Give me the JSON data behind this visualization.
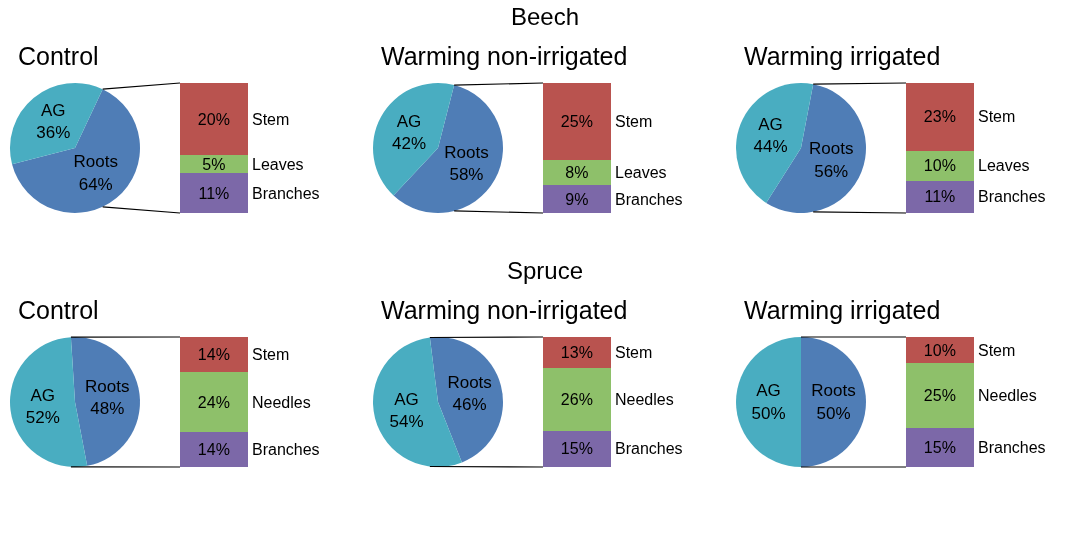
{
  "chart_data": [
    {
      "type": "pie",
      "title": "Control",
      "annotations": [
        "Beech"
      ],
      "categories": [
        "Roots",
        "AG"
      ],
      "values": [
        64,
        36
      ],
      "value_labels": [
        "64%",
        "36%"
      ],
      "colors": [
        "#4f7db6",
        "#49adc1"
      ],
      "legend": false
    },
    {
      "type": "bar",
      "stacked": true,
      "categories": [
        null
      ],
      "tick_labels": false,
      "legend": false,
      "series": [
        {
          "name": "Branches",
          "color": "#7c68a8",
          "values": [
            11
          ],
          "value_labels": [
            "11%"
          ]
        },
        {
          "name": "Leaves",
          "color": "#8ec06a",
          "values": [
            5
          ],
          "value_labels": [
            "5%"
          ]
        },
        {
          "name": "Stem",
          "color": "#b9534f",
          "values": [
            20
          ],
          "value_labels": [
            "20%"
          ]
        }
      ]
    },
    {
      "type": "pie",
      "title": "Warming non-irrigated",
      "categories": [
        "Roots",
        "AG"
      ],
      "values": [
        58,
        42
      ],
      "value_labels": [
        "58%",
        "42%"
      ],
      "colors": [
        "#4f7db6",
        "#49adc1"
      ],
      "legend": false
    },
    {
      "type": "bar",
      "stacked": true,
      "categories": [
        null
      ],
      "tick_labels": false,
      "legend": false,
      "series": [
        {
          "name": "Branches",
          "color": "#7c68a8",
          "values": [
            9
          ],
          "value_labels": [
            "9%"
          ]
        },
        {
          "name": "Leaves",
          "color": "#8ec06a",
          "values": [
            8
          ],
          "value_labels": [
            "8%"
          ]
        },
        {
          "name": "Stem",
          "color": "#b9534f",
          "values": [
            25
          ],
          "value_labels": [
            "25%"
          ]
        }
      ]
    },
    {
      "type": "pie",
      "title": "Warming irrigated",
      "categories": [
        "Roots",
        "AG"
      ],
      "values": [
        56,
        44
      ],
      "value_labels": [
        "56%",
        "44%"
      ],
      "colors": [
        "#4f7db6",
        "#49adc1"
      ],
      "legend": false
    },
    {
      "type": "bar",
      "stacked": true,
      "categories": [
        null
      ],
      "tick_labels": false,
      "legend": false,
      "series": [
        {
          "name": "Branches",
          "color": "#7c68a8",
          "values": [
            11
          ],
          "value_labels": [
            "11%"
          ]
        },
        {
          "name": "Leaves",
          "color": "#8ec06a",
          "values": [
            10
          ],
          "value_labels": [
            "10%"
          ]
        },
        {
          "name": "Stem",
          "color": "#b9534f",
          "values": [
            23
          ],
          "value_labels": [
            "23%"
          ]
        }
      ]
    },
    {
      "type": "pie",
      "title": "Control",
      "annotations": [
        "Spruce"
      ],
      "categories": [
        "Roots",
        "AG"
      ],
      "values": [
        48,
        52
      ],
      "value_labels": [
        "48%",
        "52%"
      ],
      "colors": [
        "#4f7db6",
        "#49adc1"
      ],
      "legend": false
    },
    {
      "type": "bar",
      "stacked": true,
      "categories": [
        null
      ],
      "tick_labels": false,
      "legend": false,
      "series": [
        {
          "name": "Branches",
          "color": "#7c68a8",
          "values": [
            14
          ],
          "value_labels": [
            "14%"
          ]
        },
        {
          "name": "Needles",
          "color": "#8ec06a",
          "values": [
            24
          ],
          "value_labels": [
            "24%"
          ]
        },
        {
          "name": "Stem",
          "color": "#b9534f",
          "values": [
            14
          ],
          "value_labels": [
            "14%"
          ]
        }
      ]
    },
    {
      "type": "pie",
      "title": "Warming non-irrigated",
      "categories": [
        "Roots",
        "AG"
      ],
      "values": [
        46,
        54
      ],
      "value_labels": [
        "46%",
        "54%"
      ],
      "colors": [
        "#4f7db6",
        "#49adc1"
      ],
      "legend": false
    },
    {
      "type": "bar",
      "stacked": true,
      "categories": [
        null
      ],
      "tick_labels": false,
      "legend": false,
      "series": [
        {
          "name": "Branches",
          "color": "#7c68a8",
          "values": [
            15
          ],
          "value_labels": [
            "15%"
          ]
        },
        {
          "name": "Needles",
          "color": "#8ec06a",
          "values": [
            26
          ],
          "value_labels": [
            "26%"
          ]
        },
        {
          "name": "Stem",
          "color": "#b9534f",
          "values": [
            13
          ],
          "value_labels": [
            "13%"
          ]
        }
      ]
    },
    {
      "type": "pie",
      "title": "Warming irrigated",
      "categories": [
        "Roots",
        "AG"
      ],
      "values": [
        50,
        50
      ],
      "value_labels": [
        "50%",
        "50%"
      ],
      "colors": [
        "#4f7db6",
        "#49adc1"
      ],
      "legend": false
    },
    {
      "type": "bar",
      "stacked": true,
      "categories": [
        null
      ],
      "tick_labels": false,
      "legend": false,
      "series": [
        {
          "name": "Branches",
          "color": "#7c68a8",
          "values": [
            15
          ],
          "value_labels": [
            "15%"
          ]
        },
        {
          "name": "Needles",
          "color": "#8ec06a",
          "values": [
            25
          ],
          "value_labels": [
            "25%"
          ]
        },
        {
          "name": "Stem",
          "color": "#b9534f",
          "values": [
            10
          ],
          "value_labels": [
            "10%"
          ]
        }
      ]
    }
  ]
}
